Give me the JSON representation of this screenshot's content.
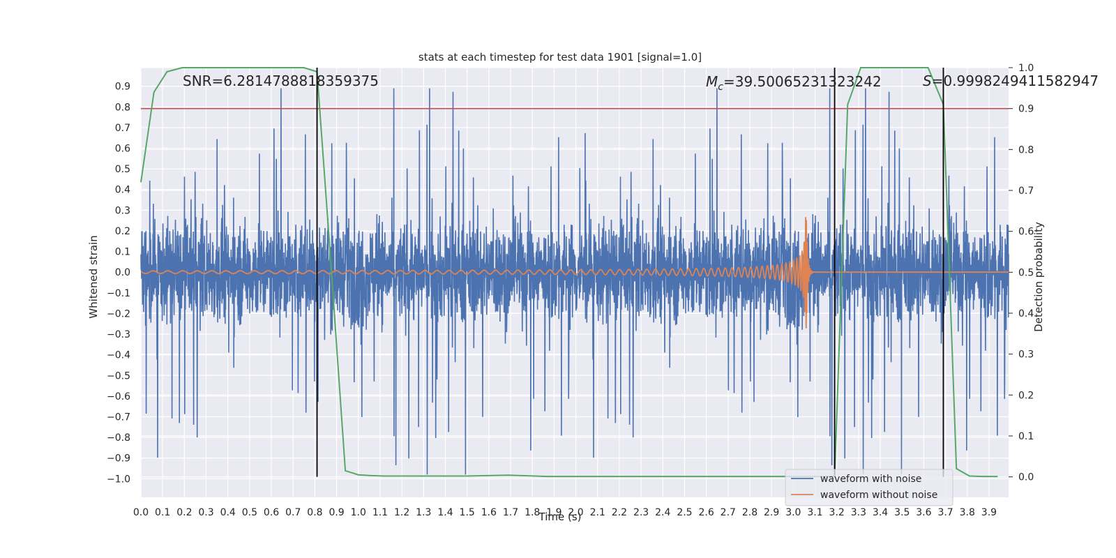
{
  "chart_data": {
    "type": "line",
    "title": "stats at each timestep for test data 1901 [signal=1.0]",
    "xlabel": "Time (s)",
    "ylabel_left": "Whitened strain",
    "ylabel_right": "Detection probability",
    "xlim": [
      0.0,
      3.99
    ],
    "ylim_left": [
      -1.09,
      0.99
    ],
    "ylim_right": [
      -0.05,
      1.0
    ],
    "x_ticks": [
      "0.0",
      "0.1",
      "0.2",
      "0.3",
      "0.4",
      "0.5",
      "0.6",
      "0.7",
      "0.8",
      "0.9",
      "1.0",
      "1.1",
      "1.2",
      "1.3",
      "1.4",
      "1.5",
      "1.6",
      "1.7",
      "1.8",
      "1.9",
      "2.0",
      "2.1",
      "2.2",
      "2.3",
      "2.4",
      "2.5",
      "2.6",
      "2.7",
      "2.8",
      "2.9",
      "3.0",
      "3.1",
      "3.2",
      "3.3",
      "3.4",
      "3.5",
      "3.6",
      "3.7",
      "3.8",
      "3.9"
    ],
    "y_ticks_left": [
      "0.9",
      "0.8",
      "0.7",
      "0.6",
      "0.5",
      "0.4",
      "0.3",
      "0.2",
      "0.1",
      "0.0",
      "−0.1",
      "−0.2",
      "−0.3",
      "−0.4",
      "−0.5",
      "−0.6",
      "−0.7",
      "−0.8",
      "−0.9",
      "−1.0"
    ],
    "y_ticks_right": [
      "1.0",
      "0.9",
      "0.8",
      "0.7",
      "0.6",
      "0.5",
      "0.4",
      "0.3",
      "0.2",
      "0.1",
      "0.0"
    ],
    "annotations": {
      "snr": "SNR=6.2814788818359375",
      "mc_symbol": "M",
      "mc_sub": "c",
      "mc_value": "=39.50065231323242",
      "s_symbol": "S",
      "s_value": "=0.9998249411582947"
    },
    "threshold": {
      "value": 0.9,
      "color": "#c44e52"
    },
    "vertical_lines": [
      0.81,
      3.19,
      3.69
    ],
    "detection_probability": {
      "name": "detection probability",
      "color": "#55a868",
      "x": [
        0.0,
        0.06,
        0.12,
        0.19,
        0.25,
        0.31,
        0.37,
        0.44,
        0.5,
        0.56,
        0.62,
        0.69,
        0.75,
        0.81,
        0.87,
        0.94,
        1.0,
        1.06,
        1.12,
        1.19,
        1.5,
        1.69,
        1.87,
        2.5,
        3.0,
        3.12,
        3.19,
        3.25,
        3.31,
        3.37,
        3.44,
        3.5,
        3.56,
        3.62,
        3.69,
        3.75,
        3.81,
        3.87,
        3.94
      ],
      "y": [
        0.72,
        0.94,
        0.99,
        1.0,
        1.0,
        1.0,
        1.0,
        1.0,
        1.0,
        1.0,
        1.0,
        1.0,
        1.0,
        0.99,
        0.55,
        0.015,
        0.005,
        0.003,
        0.002,
        0.002,
        0.002,
        0.004,
        0.001,
        0.001,
        0.001,
        0.001,
        0.001,
        0.91,
        1.0,
        1.0,
        1.0,
        1.0,
        1.0,
        1.0,
        0.91,
        0.02,
        0.002,
        0.001,
        0.001
      ]
    },
    "series": [
      {
        "name": "waveform with noise",
        "color": "#4c72b0"
      },
      {
        "name": "waveform without noise",
        "color": "#dd8452"
      }
    ],
    "legend_position": "lower-right"
  }
}
